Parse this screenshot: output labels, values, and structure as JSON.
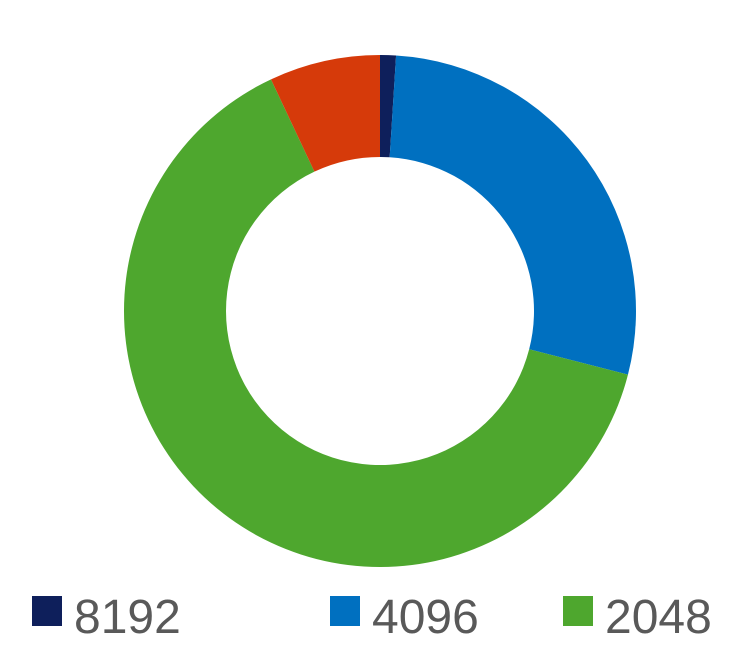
{
  "chart_data": {
    "type": "pie",
    "donut": true,
    "series": [
      {
        "name": "8192",
        "value": 1,
        "color": "#0e1f5b"
      },
      {
        "name": "4096",
        "value": 28,
        "color": "#0070c0"
      },
      {
        "name": "2048",
        "value": 64,
        "color": "#4ea72e"
      },
      {
        "name": "",
        "value": 7,
        "color": "#d63a0a"
      }
    ],
    "legend": {
      "position": "bottom",
      "entries": [
        "8192",
        "4096",
        "2048"
      ]
    }
  }
}
